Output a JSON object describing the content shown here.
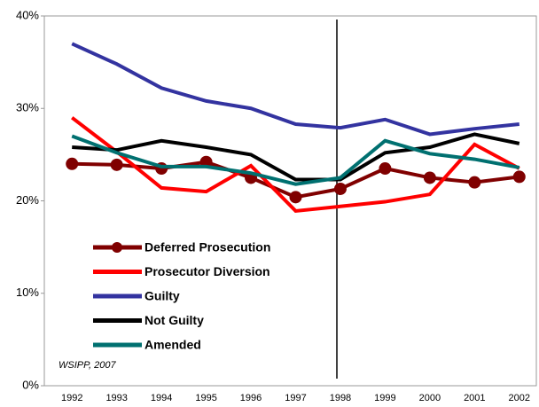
{
  "chart_data": {
    "type": "line",
    "categories": [
      "1992",
      "1993",
      "1994",
      "1995",
      "1996",
      "1997",
      "1998",
      "1999",
      "2000",
      "2001",
      "2002"
    ],
    "series": [
      {
        "name": "Deferred Prosecution",
        "color": "#800000",
        "marker": "circle",
        "values": [
          24.0,
          23.9,
          23.5,
          24.2,
          22.5,
          20.4,
          21.3,
          23.5,
          22.5,
          22.0,
          22.6
        ]
      },
      {
        "name": "Prosecutor Diversion",
        "color": "#ff0000",
        "values": [
          29.0,
          25.3,
          21.4,
          21.0,
          23.8,
          18.9,
          19.4,
          19.9,
          20.7,
          26.1,
          23.5
        ]
      },
      {
        "name": "Guilty",
        "color": "#3333a0",
        "values": [
          37.0,
          34.8,
          32.2,
          30.8,
          30.0,
          28.3,
          27.9,
          28.8,
          27.2,
          27.8,
          28.3
        ]
      },
      {
        "name": "Not Guilty",
        "color": "#000000",
        "values": [
          25.8,
          25.5,
          26.5,
          25.8,
          25.0,
          22.3,
          22.3,
          25.2,
          25.8,
          27.2,
          26.2
        ]
      },
      {
        "name": "Amended",
        "color": "#007070",
        "values": [
          27.0,
          25.2,
          23.7,
          23.7,
          23.0,
          21.8,
          22.5,
          26.5,
          25.1,
          24.5,
          23.6
        ]
      }
    ],
    "ylim": [
      0,
      40
    ],
    "yticks": [
      {
        "value": 0,
        "label": "0%"
      },
      {
        "value": 10,
        "label": "10%"
      },
      {
        "value": 20,
        "label": "20%"
      },
      {
        "value": 30,
        "label": "30%"
      },
      {
        "value": 40,
        "label": "40%"
      }
    ],
    "annotation": "WSIPP, 2007",
    "legend": "lower left"
  }
}
